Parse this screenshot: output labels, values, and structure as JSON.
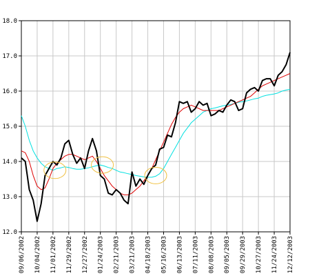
{
  "chart_data": {
    "type": "line",
    "ylim": [
      12.0,
      18.0
    ],
    "y_ticks": [
      "12.0",
      "13.0",
      "14.0",
      "15.0",
      "16.0",
      "17.0",
      "18.0"
    ],
    "y_tick_values": [
      12,
      13,
      14,
      15,
      16,
      17,
      18
    ],
    "x_ticks": [
      "09/06/2002",
      "10/04/2002",
      "11/01/2002",
      "11/29/2002",
      "12/27/2002",
      "01/24/2003",
      "02/21/2003",
      "03/21/2003",
      "04/18/2003",
      "05/16/2003",
      "06/13/2003",
      "07/11/2003",
      "08/08/2003",
      "09/05/2003",
      "09/29/2003",
      "10/27/2003",
      "11/24/2003",
      "12/12/2003"
    ],
    "grid": true,
    "colors": {
      "price": "#000000",
      "ma_short": "#dd0000",
      "ma_long": "#00e0e0",
      "crossover_marker": "#f0c040",
      "grid": "#c8c8c8"
    },
    "series": [
      {
        "key": "price",
        "values": [
          14.1,
          14.0,
          13.2,
          12.9,
          12.3,
          12.8,
          13.6,
          13.8,
          14.0,
          13.9,
          14.1,
          14.5,
          14.6,
          14.2,
          13.95,
          14.1,
          13.8,
          14.3,
          14.65,
          14.3,
          13.6,
          13.5,
          13.1,
          13.05,
          13.2,
          13.1,
          12.9,
          12.8,
          13.7,
          13.3,
          13.5,
          13.35,
          13.6,
          13.8,
          13.9,
          14.35,
          14.4,
          14.75,
          14.7,
          15.1,
          15.7,
          15.65,
          15.7,
          15.4,
          15.5,
          15.7,
          15.6,
          15.65,
          15.3,
          15.35,
          15.45,
          15.4,
          15.6,
          15.75,
          15.7,
          15.45,
          15.5,
          15.95,
          16.05,
          16.1,
          16.0,
          16.3,
          16.35,
          16.35,
          16.15,
          16.45,
          16.55,
          16.75,
          17.1
        ]
      },
      {
        "key": "ma_short",
        "values": [
          14.3,
          14.25,
          14.0,
          13.6,
          13.3,
          13.2,
          13.25,
          13.5,
          13.8,
          13.95,
          14.05,
          14.15,
          14.2,
          14.2,
          14.15,
          14.1,
          14.05,
          14.1,
          14.15,
          14.0,
          13.8,
          13.6,
          13.45,
          13.3,
          13.2,
          13.1,
          13.05,
          13.05,
          13.1,
          13.2,
          13.3,
          13.45,
          13.6,
          13.8,
          14.05,
          14.3,
          14.55,
          14.8,
          15.05,
          15.25,
          15.4,
          15.5,
          15.55,
          15.6,
          15.55,
          15.5,
          15.45,
          15.45,
          15.45,
          15.45,
          15.45,
          15.5,
          15.55,
          15.6,
          15.65,
          15.7,
          15.75,
          15.8,
          15.85,
          15.95,
          16.05,
          16.15,
          16.2,
          16.25,
          16.3,
          16.35,
          16.4,
          16.45,
          16.5
        ]
      },
      {
        "key": "ma_long",
        "values": [
          15.3,
          15.0,
          14.6,
          14.3,
          14.1,
          13.95,
          13.85,
          13.8,
          13.75,
          13.8,
          13.82,
          13.85,
          13.83,
          13.8,
          13.78,
          13.78,
          13.8,
          13.82,
          13.85,
          13.88,
          13.9,
          13.87,
          13.83,
          13.8,
          13.75,
          13.7,
          13.68,
          13.65,
          13.63,
          13.6,
          13.58,
          13.56,
          13.55,
          13.55,
          13.58,
          13.65,
          13.8,
          14.0,
          14.2,
          14.4,
          14.6,
          14.8,
          14.95,
          15.1,
          15.2,
          15.3,
          15.4,
          15.45,
          15.5,
          15.52,
          15.55,
          15.58,
          15.6,
          15.62,
          15.65,
          15.68,
          15.7,
          15.72,
          15.75,
          15.78,
          15.8,
          15.85,
          15.88,
          15.9,
          15.92,
          15.95,
          16.0,
          16.03,
          16.05
        ]
      }
    ],
    "crossover_markers": [
      {
        "index": 8.5,
        "value": 13.75
      },
      {
        "index": 20.5,
        "value": 13.9
      },
      {
        "index": 34.0,
        "value": 13.6
      }
    ]
  }
}
